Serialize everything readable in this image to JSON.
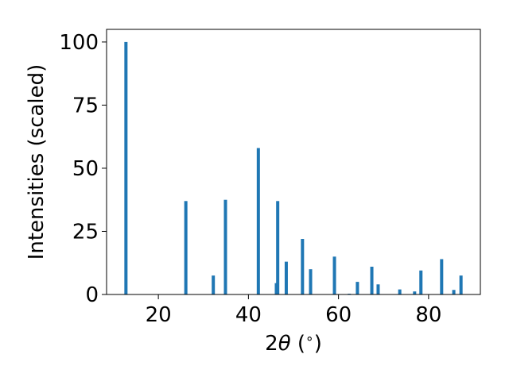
{
  "chart_data": {
    "type": "bar",
    "xlabel_prefix": "2",
    "xlabel_symbol": "θ",
    "xlabel_suffix": " (",
    "xlabel_degree": "∘",
    "xlabel_close": ")",
    "ylabel": "Intensities (scaled)",
    "xlim": [
      8.5,
      91.5
    ],
    "ylim": [
      0,
      105
    ],
    "xticks": [
      20,
      40,
      60,
      80
    ],
    "yticks": [
      0,
      25,
      50,
      75,
      100
    ],
    "grid": false,
    "bar_color": "#1f77b4",
    "series": [
      {
        "x": [
          12.8,
          26.1,
          32.2,
          34.9,
          42.2,
          46.2,
          46.5,
          48.4,
          52.0,
          53.8,
          59.1,
          62.4,
          64.2,
          67.4,
          68.8,
          73.6,
          76.9,
          78.3,
          82.9,
          85.6,
          87.2
        ],
        "values": [
          100,
          37,
          7.5,
          37.5,
          58,
          4.5,
          37,
          13,
          22,
          10,
          15,
          0.3,
          5,
          11,
          4,
          2,
          1.2,
          9.5,
          14,
          1.8,
          7.5
        ]
      }
    ]
  }
}
